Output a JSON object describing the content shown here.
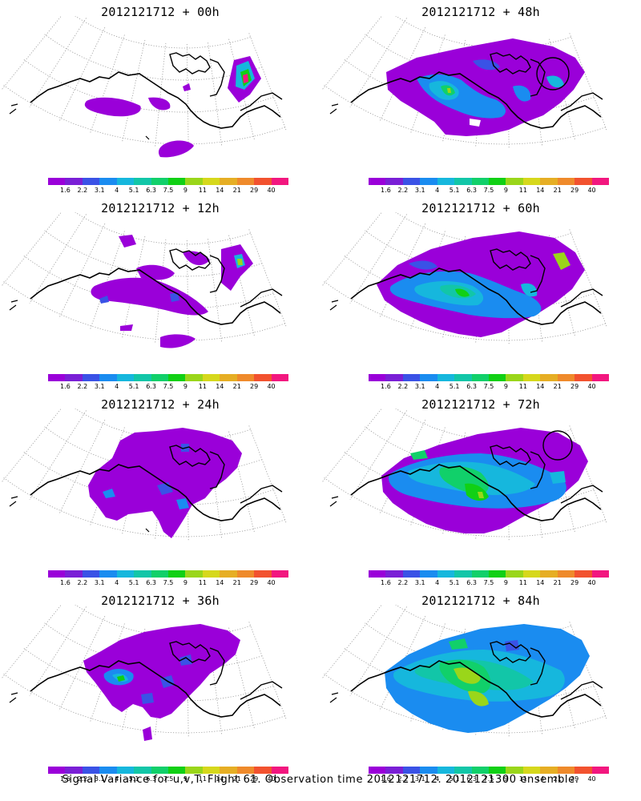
{
  "panels": [
    {
      "title": "2012121712 + 00h",
      "lead": "00h"
    },
    {
      "title": "2012121712 + 48h",
      "lead": "48h"
    },
    {
      "title": "2012121712 + 12h",
      "lead": "12h"
    },
    {
      "title": "2012121712 + 60h",
      "lead": "60h"
    },
    {
      "title": "2012121712 + 24h",
      "lead": "24h"
    },
    {
      "title": "2012121712 + 72h",
      "lead": "72h"
    },
    {
      "title": "2012121712 + 36h",
      "lead": "36h"
    },
    {
      "title": "2012121712 + 84h",
      "lead": "84h"
    }
  ],
  "colorbar": {
    "ticks": [
      "1.6",
      "2.2",
      "3.1",
      "4",
      "5.1",
      "6.3",
      "7.5",
      "9",
      "11",
      "14",
      "21",
      "29",
      "40"
    ],
    "colors": [
      "#9a00d9",
      "#7a1fd6",
      "#3a52e6",
      "#1a8cf0",
      "#16b7dd",
      "#12c6a8",
      "#11d06a",
      "#11d015",
      "#9ad61a",
      "#d6d81c",
      "#e6ae24",
      "#ef8a2b",
      "#f2522f",
      "#f2177f"
    ]
  },
  "caption": "Signal Variance for u,v,T. Flight 61. Observation time 2012121712. 2012121300 ensemble."
}
